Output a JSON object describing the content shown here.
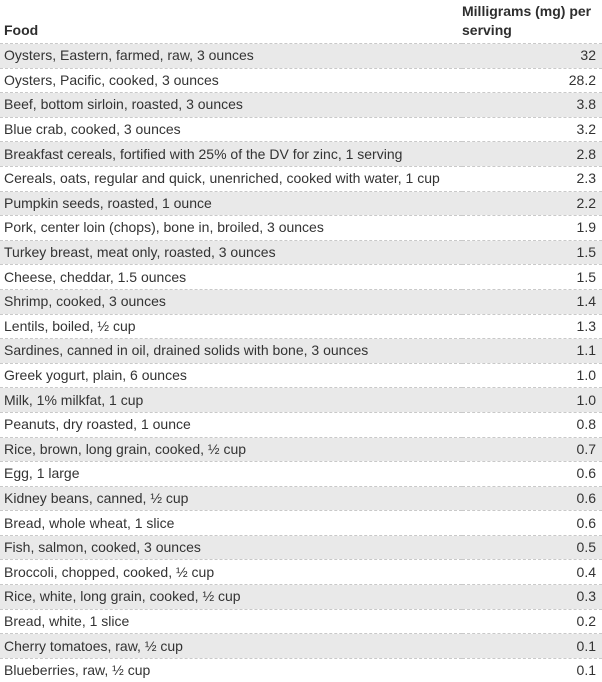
{
  "chart_data": {
    "type": "table",
    "columns": [
      {
        "key": "food",
        "label": "Food"
      },
      {
        "key": "mg",
        "label": "Milligrams (mg) per serving"
      }
    ],
    "rows": [
      {
        "food": "Oysters, Eastern, farmed, raw, 3 ounces",
        "mg": "32"
      },
      {
        "food": "Oysters, Pacific, cooked, 3 ounces",
        "mg": "28.2"
      },
      {
        "food": "Beef, bottom sirloin, roasted, 3 ounces",
        "mg": "3.8"
      },
      {
        "food": "Blue crab, cooked, 3 ounces",
        "mg": "3.2"
      },
      {
        "food": "Breakfast cereals, fortified with 25% of the DV for zinc, 1 serving",
        "mg": "2.8"
      },
      {
        "food": "Cereals, oats, regular and quick, unenriched, cooked with water, 1 cup",
        "mg": "2.3"
      },
      {
        "food": "Pumpkin seeds, roasted, 1 ounce",
        "mg": "2.2"
      },
      {
        "food": "Pork, center loin (chops), bone in, broiled, 3 ounces",
        "mg": "1.9"
      },
      {
        "food": "Turkey breast, meat only, roasted, 3 ounces",
        "mg": "1.5"
      },
      {
        "food": "Cheese, cheddar, 1.5 ounces",
        "mg": "1.5"
      },
      {
        "food": "Shrimp, cooked, 3 ounces",
        "mg": "1.4"
      },
      {
        "food": "Lentils, boiled, ½ cup",
        "mg": "1.3"
      },
      {
        "food": "Sardines, canned in oil, drained solids with bone, 3 ounces",
        "mg": "1.1"
      },
      {
        "food": "Greek yogurt, plain, 6 ounces",
        "mg": "1.0"
      },
      {
        "food": "Milk, 1% milkfat, 1 cup",
        "mg": "1.0"
      },
      {
        "food": "Peanuts, dry roasted, 1 ounce",
        "mg": "0.8"
      },
      {
        "food": "Rice, brown, long grain, cooked, ½ cup",
        "mg": "0.7"
      },
      {
        "food": "Egg, 1 large",
        "mg": "0.6"
      },
      {
        "food": "Kidney beans, canned, ½ cup",
        "mg": "0.6"
      },
      {
        "food": "Bread, whole wheat, 1 slice",
        "mg": "0.6"
      },
      {
        "food": "Fish, salmon, cooked, 3 ounces",
        "mg": "0.5"
      },
      {
        "food": "Broccoli, chopped, cooked, ½ cup",
        "mg": "0.4"
      },
      {
        "food": "Rice, white, long grain, cooked, ½ cup",
        "mg": "0.3"
      },
      {
        "food": "Bread, white, 1 slice",
        "mg": "0.2"
      },
      {
        "food": "Cherry tomatoes, raw, ½ cup",
        "mg": "0.1"
      },
      {
        "food": "Blueberries, raw, ½ cup",
        "mg": "0.1"
      }
    ],
    "layout": {
      "zebra_striping": true,
      "first_data_row_shaded": true,
      "row_divider_style": "dashed",
      "header_alignment": "left",
      "value_alignment": "right",
      "grid": false,
      "legend": false
    },
    "colors": {
      "row_shaded_bg": "#e9e9e9",
      "row_plain_bg": "#ffffff",
      "row_divider": "#c9c9c9",
      "text": "#333333"
    }
  }
}
